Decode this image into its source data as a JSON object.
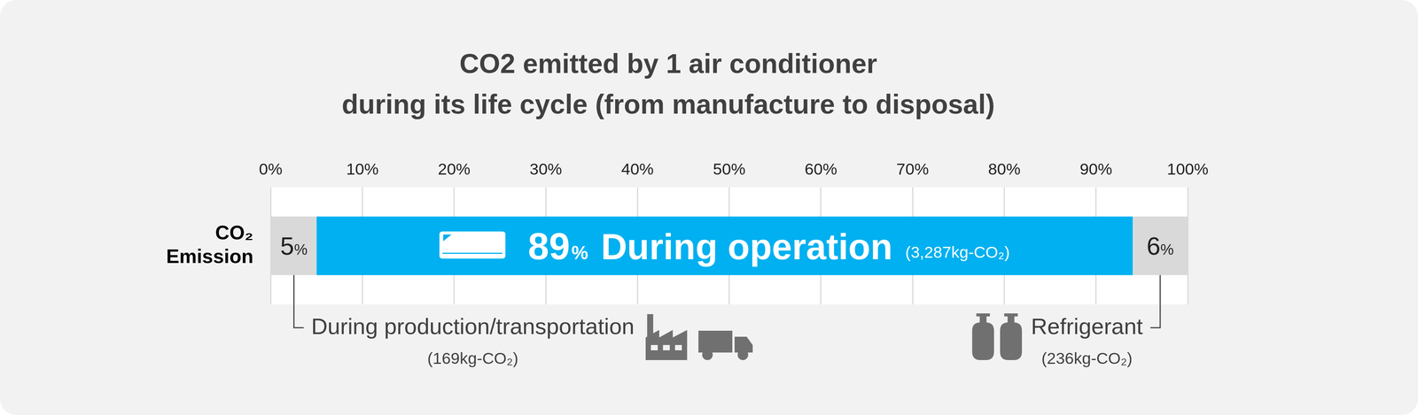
{
  "chart_data": {
    "type": "bar",
    "orientation": "horizontal",
    "stacked": true,
    "title": [
      "CO2 emitted by 1 air conditioner",
      "during its life cycle (from manufacture to disposal)"
    ],
    "categories": [
      "CO₂ Emission"
    ],
    "series": [
      {
        "name": "During production/transportation",
        "color": "#d9d9d9",
        "values": [
          5
        ],
        "value_labels": [
          "5%"
        ],
        "emission_labels": [
          "(169kg-CO₂)"
        ]
      },
      {
        "name": "During operation",
        "color": "#00b0f0",
        "values": [
          89
        ],
        "value_labels": [
          "89%"
        ],
        "emission_labels": [
          "(3,287kg-CO₂)"
        ]
      },
      {
        "name": "Refrigerant",
        "color": "#d9d9d9",
        "values": [
          6
        ],
        "value_labels": [
          "6%"
        ],
        "emission_labels": [
          "(236kg-CO₂)"
        ]
      }
    ],
    "xlim": [
      0,
      100
    ],
    "xticks": [
      {
        "value": 0,
        "label": "0%"
      },
      {
        "value": 10,
        "label": "10%"
      },
      {
        "value": 20,
        "label": "20%"
      },
      {
        "value": 30,
        "label": "30%"
      },
      {
        "value": 40,
        "label": "40%"
      },
      {
        "value": 50,
        "label": "50%"
      },
      {
        "value": 60,
        "label": "60%"
      },
      {
        "value": 70,
        "label": "70%"
      },
      {
        "value": 80,
        "label": "80%"
      },
      {
        "value": 90,
        "label": "90%"
      },
      {
        "value": 100,
        "label": "100%"
      }
    ],
    "grid": true,
    "data_labels": true
  }
}
